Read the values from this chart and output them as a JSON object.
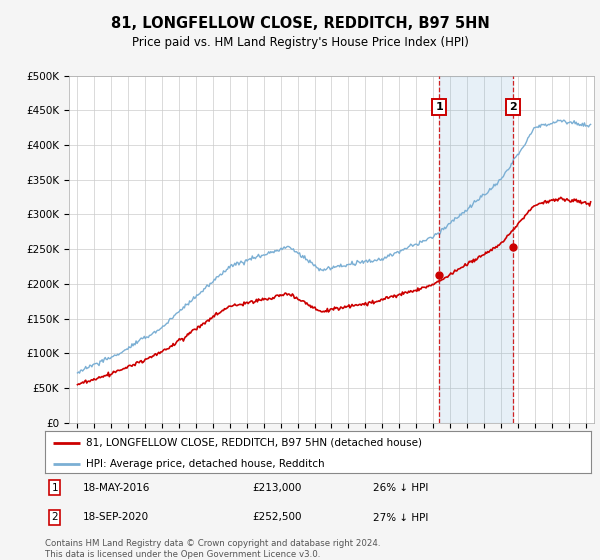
{
  "title": "81, LONGFELLOW CLOSE, REDDITCH, B97 5HN",
  "subtitle": "Price paid vs. HM Land Registry's House Price Index (HPI)",
  "ylabel_ticks": [
    "£0",
    "£50K",
    "£100K",
    "£150K",
    "£200K",
    "£250K",
    "£300K",
    "£350K",
    "£400K",
    "£450K",
    "£500K"
  ],
  "ytick_vals": [
    0,
    50000,
    100000,
    150000,
    200000,
    250000,
    300000,
    350000,
    400000,
    450000,
    500000
  ],
  "xlim": [
    1994.5,
    2025.5
  ],
  "ylim": [
    0,
    500000
  ],
  "hpi_color": "#7bafd4",
  "hpi_fill_color": "#d0e4f5",
  "price_color": "#cc0000",
  "vline_color": "#cc0000",
  "marker1_x": 2016.37,
  "marker1_y": 213000,
  "marker2_x": 2020.71,
  "marker2_y": 252500,
  "note1_date": "18-MAY-2016",
  "note1_price": "£213,000",
  "note1_pct": "26% ↓ HPI",
  "note2_date": "18-SEP-2020",
  "note2_price": "£252,500",
  "note2_pct": "27% ↓ HPI",
  "legend_label1": "81, LONGFELLOW CLOSE, REDDITCH, B97 5HN (detached house)",
  "legend_label2": "HPI: Average price, detached house, Redditch",
  "footer": "Contains HM Land Registry data © Crown copyright and database right 2024.\nThis data is licensed under the Open Government Licence v3.0.",
  "background_color": "#f5f5f5",
  "plot_bg_color": "#ffffff"
}
